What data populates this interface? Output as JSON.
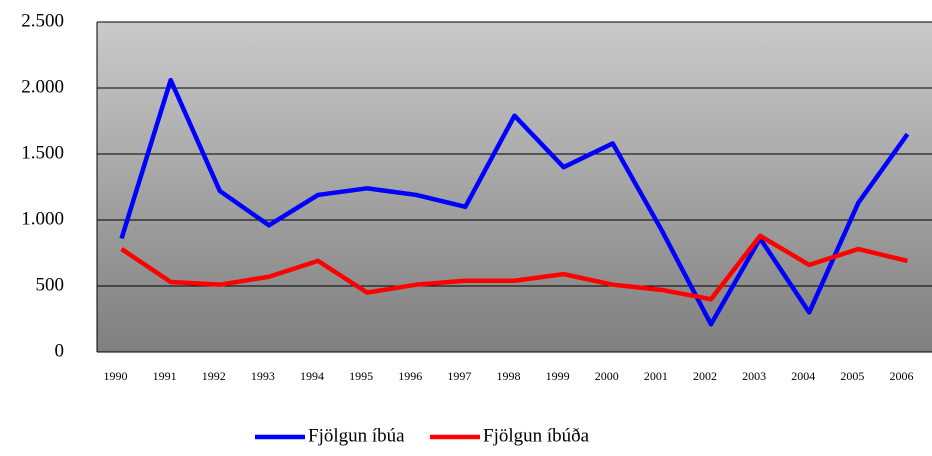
{
  "chart_data": {
    "type": "line",
    "categories": [
      "1990",
      "1991",
      "1992",
      "1993",
      "1994",
      "1995",
      "1996",
      "1997",
      "1998",
      "1999",
      "2000",
      "2001",
      "2002",
      "2003",
      "2004",
      "2005",
      "2006"
    ],
    "series": [
      {
        "name": "Fjölgun íbúa",
        "color": "#0000ff",
        "values": [
          860,
          2060,
          1220,
          960,
          1190,
          1240,
          1190,
          1100,
          1790,
          1400,
          1580,
          920,
          210,
          860,
          300,
          1130,
          1650
        ]
      },
      {
        "name": "Fjölgun íbúða",
        "color": "#ff0000",
        "values": [
          780,
          530,
          510,
          570,
          690,
          450,
          510,
          540,
          540,
          590,
          510,
          470,
          400,
          880,
          660,
          780,
          690
        ]
      }
    ],
    "ylim": [
      0,
      2500
    ],
    "yticks": [
      0,
      500,
      {
        "value": 1000,
        "label": "1.000"
      },
      {
        "value": 1500,
        "label": "1.500"
      },
      {
        "value": 2000,
        "label": "2.000"
      },
      {
        "value": 2500,
        "label": "2.500"
      }
    ],
    "grid": true,
    "legend": "bottom"
  }
}
